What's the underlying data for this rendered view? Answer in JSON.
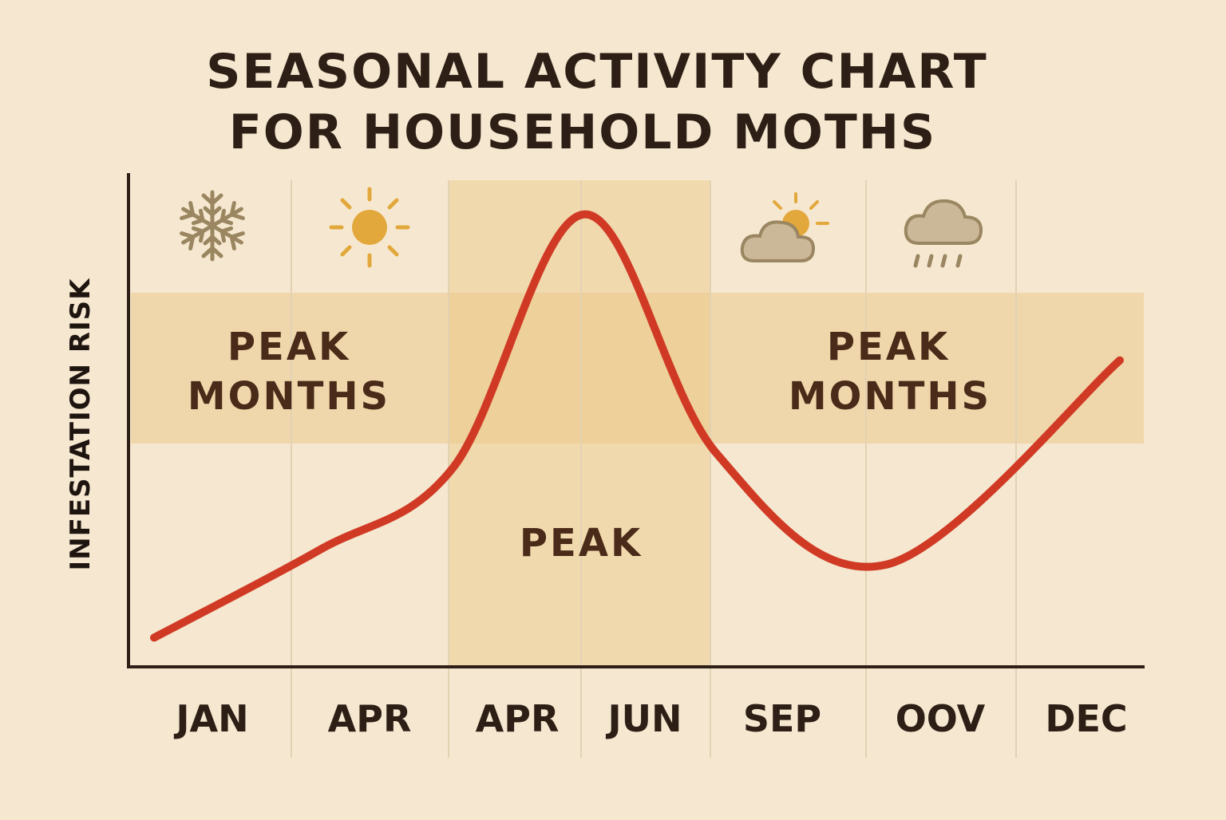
{
  "chart_data": {
    "type": "line",
    "title_lines": [
      "SEASONAL ACTIVITY CHART",
      "FOR HOUSEHOLD MOTHS"
    ],
    "ylabel": "INFESTATION RISK",
    "xlabel": "",
    "categories": [
      "JAN",
      "APR",
      "APR",
      "JUN",
      "SEP",
      "OOV",
      "DEC"
    ],
    "series": [
      {
        "values": [
          0.06,
          0.24,
          0.41,
          0.93,
          0.44,
          0.21,
          0.63
        ],
        "color": "#d03a25"
      }
    ],
    "ylim": [
      0,
      1
    ],
    "grid": "vertical",
    "bands": {
      "horizontal": {
        "range": [
          0.46,
          0.77
        ],
        "labels": [
          "PEAK MONTHS",
          "PEAK MONTHS"
        ]
      },
      "vertical": {
        "categories": [
          "APR",
          "JUN"
        ],
        "label": "PEAK"
      }
    },
    "icons": [
      "snowflake-icon",
      "sun-icon",
      "sun-behind-cloud-icon",
      "rain-cloud-icon"
    ],
    "colors": {
      "background": "#f6e8d0",
      "band": "#ebc98c",
      "line": "#d03a25",
      "text": "#3b2417",
      "axis": "#2e1f16"
    }
  }
}
